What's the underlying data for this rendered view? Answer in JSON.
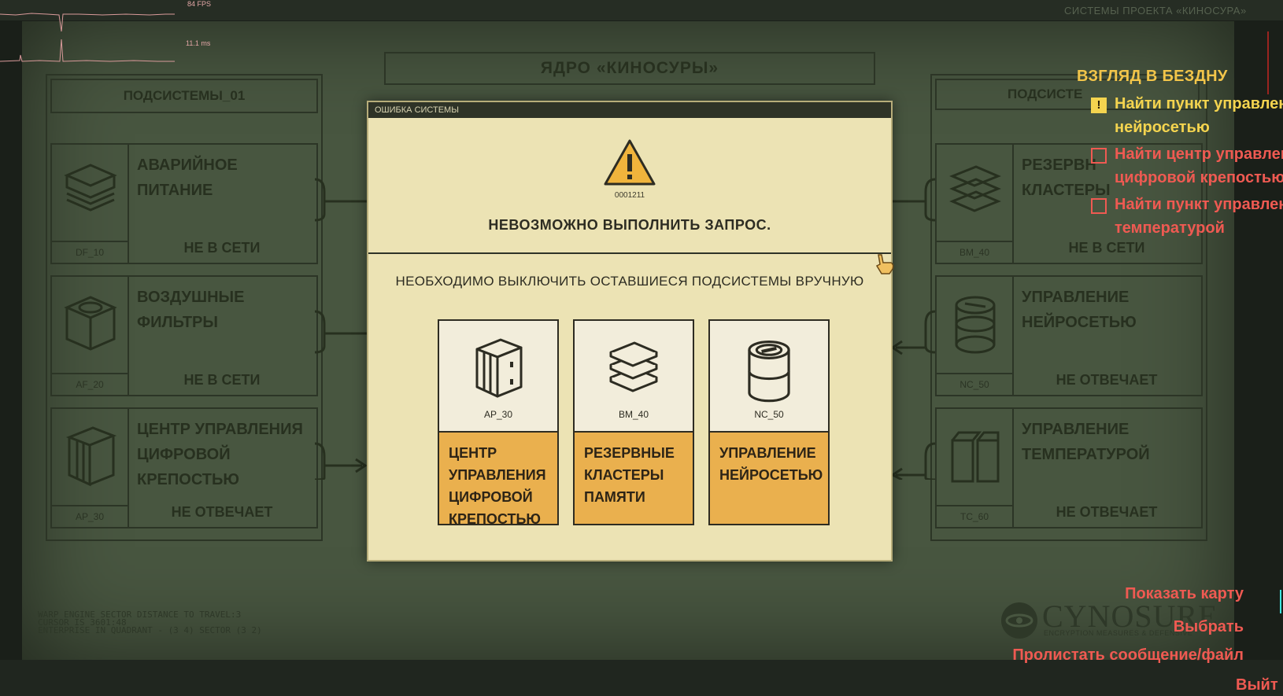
{
  "overlay": {
    "fps_label": "84 FPS",
    "frametime_label": "11.1 ms",
    "top_right_caption": "СИСТЕМЫ ПРОЕКТА «КИНОСУРА»"
  },
  "background": {
    "core_title": "ЯДРО «КИНОСУРЫ»",
    "left_column_title": "ПОДСИСТЕМЫ_01",
    "right_column_title": "ПОДСИСТЕ",
    "left_panels": [
      {
        "name": "АВАРИЙНОЕ\nПИТАНИЕ",
        "code": "DF_10",
        "state": "НЕ В СЕТИ",
        "icon": "layers-icon"
      },
      {
        "name": "ВОЗДУШНЫЕ\nФИЛЬТРЫ",
        "code": "AF_20",
        "state": "НЕ В СЕТИ",
        "icon": "filter-icon"
      },
      {
        "name": "ЦЕНТР УПРАВЛЕНИЯ\nЦИФРОВОЙ\nКРЕПОСТЬЮ",
        "code": "AP_30",
        "state": "НЕ ОТВЕЧАЕТ",
        "icon": "server-icon"
      }
    ],
    "right_panels": [
      {
        "name": "РЕЗЕРВН\nКЛАСТЕРЫ",
        "code": "BM_40",
        "state": "НЕ В СЕТИ",
        "icon": "memory-stack-icon"
      },
      {
        "name": "УПРАВЛЕНИЕ\nНЕЙРОСЕТЬЮ",
        "code": "NC_50",
        "state": "НЕ ОТВЕЧАЕТ",
        "icon": "cylinder-icon"
      },
      {
        "name": "УПРАВЛЕНИЕ\nТЕМПЕРАТУРОЙ",
        "code": "TC_60",
        "state": "НЕ ОТВЕЧАЕТ",
        "icon": "tanks-icon"
      }
    ],
    "bottom_log": [
      "WARP ENGINE SECTOR DISTANCE TO TRAVEL:3",
      "CURSOR IS 3601:48",
      "ENTERPRISE IN QUADRANT - (3 4) SECTOR (3 2)"
    ],
    "brand": {
      "name": "CYNOSURE",
      "tagline": "ENCRYPTION MEASURES & DEFENSIVE"
    }
  },
  "dialog": {
    "title": "ОШИБКА СИСТЕМЫ",
    "error_code": "0001211",
    "error_message": "НЕВОЗМОЖНО ВЫПОЛНИТЬ ЗАПРОС.",
    "instruction": "НЕОБХОДИМО ВЫКЛЮЧИТЬ ОСТАВШИЕСЯ ПОДСИСТЕМЫ ВРУЧНУЮ",
    "cards": [
      {
        "code": "AP_30",
        "label": "ЦЕНТР\nУПРАВЛЕНИЯ\nЦИФРОВОЙ\nКРЕПОСТЬЮ",
        "icon": "server-icon"
      },
      {
        "code": "BM_40",
        "label": "РЕЗЕРВНЫЕ\nКЛАСТЕРЫ\nПАМЯТИ",
        "icon": "memory-stack-icon"
      },
      {
        "code": "NC_50",
        "label": "УПРАВЛЕНИЕ\nНЕЙРОСЕТЬЮ",
        "icon": "cylinder-icon"
      }
    ],
    "colors": {
      "paper": "#ece3b4",
      "accent": "#eab04e",
      "warning": "#f0b43c"
    }
  },
  "quest": {
    "title": "ВЗГЛЯД В БЕЗДНУ",
    "objectives": [
      {
        "text": "Найти пункт управлен\nнейросетью",
        "status": "active"
      },
      {
        "text": "Найти центр управлен\nцифровой крепостью",
        "status": "pending"
      },
      {
        "text": "Найти пункт управлен\nтемпературой",
        "status": "pending"
      }
    ]
  },
  "hints": {
    "show_map": "Показать карту",
    "select": "Выбрать",
    "scroll": "Пролистать сообщение/файл",
    "exit_partial": "Выйт"
  },
  "hud_colors": {
    "quest_yellow": "#f4d44f",
    "hint_red": "#ef5a52",
    "key_cyan": "#3fe5e0"
  }
}
